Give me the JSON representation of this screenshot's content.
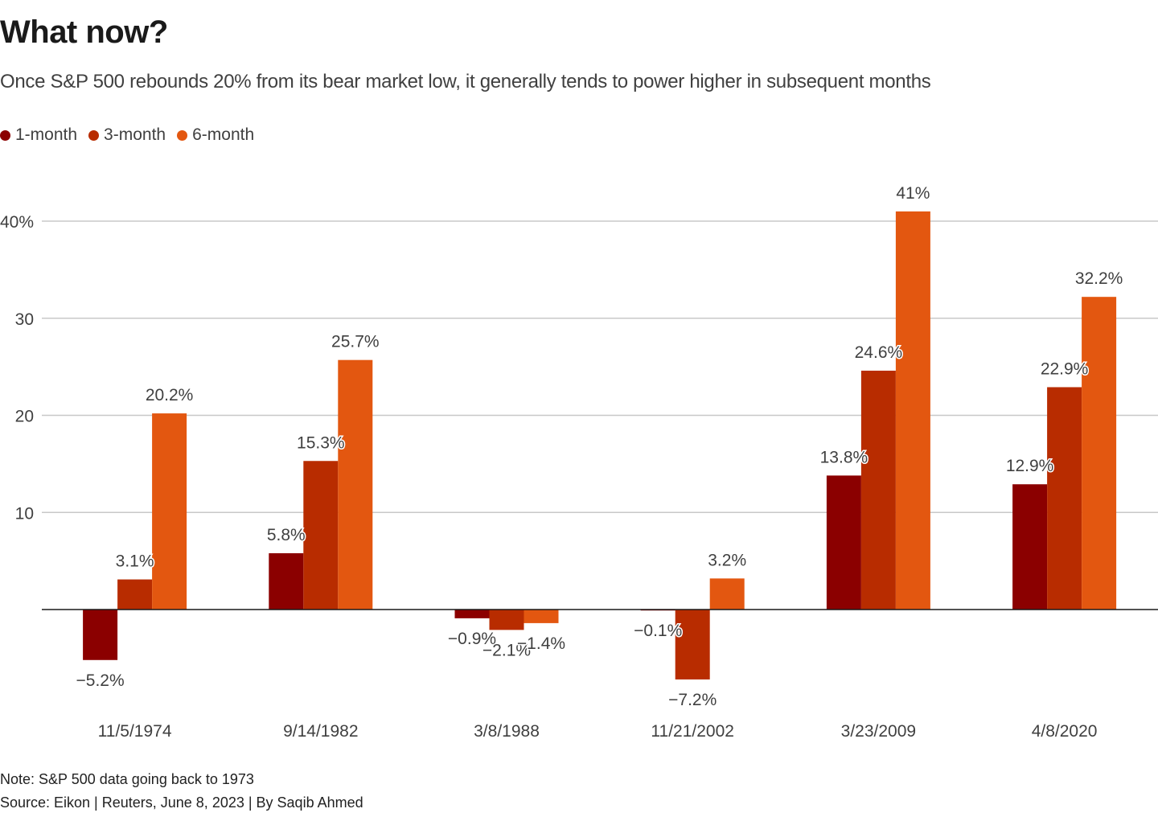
{
  "header": {
    "title": "What now?",
    "subtitle": "Once S&P 500 rebounds 20% from its bear market low, it generally tends to power higher in subsequent months"
  },
  "legend": [
    {
      "label": "1-month",
      "color": "#8b0000"
    },
    {
      "label": "3-month",
      "color": "#b82c00"
    },
    {
      "label": "6-month",
      "color": "#e35710"
    }
  ],
  "footer": {
    "note": "Note: S&P 500 data going back to 1973",
    "source": "Source: Eikon | Reuters, June 8, 2023 | By Saqib Ahmed"
  },
  "chart_data": {
    "type": "bar",
    "title": "What now?",
    "subtitle": "Once S&P 500 rebounds 20% from its bear market low, it generally tends to power higher in subsequent months",
    "xlabel": "",
    "ylabel": "",
    "categories": [
      "11/5/1974",
      "9/14/1982",
      "3/8/1988",
      "11/21/2002",
      "3/23/2009",
      "4/8/2020"
    ],
    "series": [
      {
        "name": "1-month",
        "color": "#8b0000",
        "values": [
          -5.2,
          5.8,
          -0.9,
          -0.1,
          13.8,
          12.9
        ],
        "labels": [
          "−5.2%",
          "5.8%",
          "−0.9%",
          "−0.1%",
          "13.8%",
          "12.9%"
        ]
      },
      {
        "name": "3-month",
        "color": "#b82c00",
        "values": [
          3.1,
          15.3,
          -2.1,
          -7.2,
          24.6,
          22.9
        ],
        "labels": [
          "3.1%",
          "15.3%",
          "−2.1%",
          "−7.2%",
          "24.6%",
          "22.9%"
        ]
      },
      {
        "name": "6-month",
        "color": "#e35710",
        "values": [
          20.2,
          25.7,
          -1.4,
          3.2,
          41,
          32.2
        ],
        "labels": [
          "20.2%",
          "25.7%",
          "−1.4%",
          "3.2%",
          "41%",
          "32.2%"
        ]
      }
    ],
    "y_ticks": [
      10,
      20,
      30,
      40
    ],
    "y_tick_labels": [
      "10",
      "20",
      "30",
      "40%"
    ],
    "ylim": [
      -10,
      44
    ],
    "grid": true,
    "legend_position": "top-left"
  }
}
